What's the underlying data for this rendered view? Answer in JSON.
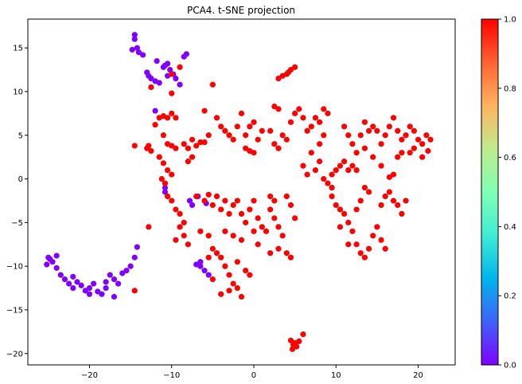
{
  "chart_data": {
    "type": "scatter",
    "title": "PCA4. t-SNE projection",
    "xlabel": "",
    "ylabel": "",
    "xlim": [
      -27.5,
      24.5
    ],
    "ylim": [
      -21.3,
      18.3
    ],
    "xticks": [
      -20,
      -10,
      0,
      10,
      20
    ],
    "xtick_labels": [
      "−20",
      "−10",
      "0",
      "10",
      "20"
    ],
    "yticks": [
      -20,
      -15,
      -10,
      -5,
      0,
      5,
      10,
      15
    ],
    "ytick_labels": [
      "−20",
      "−15",
      "−10",
      "−5",
      "0",
      "5",
      "10",
      "15"
    ],
    "grid": false,
    "colormap": "rainbow",
    "colorbar": {
      "range": [
        0.0,
        1.0
      ],
      "ticks": [
        0.0,
        0.2,
        0.4,
        0.6,
        0.8,
        1.0
      ],
      "tick_labels": [
        "0.0",
        "0.2",
        "0.4",
        "0.6",
        "0.8",
        "1.0"
      ]
    },
    "series": [
      {
        "value": 0.0,
        "color": "#8000ff",
        "points": [
          [
            -25.0,
            -9.0
          ],
          [
            -24.5,
            -9.5
          ],
          [
            -25.2,
            -9.8
          ],
          [
            -24.0,
            -10.2
          ],
          [
            -24.8,
            -9.2
          ],
          [
            -23.5,
            -11.0
          ],
          [
            -23.0,
            -11.5
          ],
          [
            -22.5,
            -12.0
          ],
          [
            -22.0,
            -11.2
          ],
          [
            -21.5,
            -11.8
          ],
          [
            -21.0,
            -12.2
          ],
          [
            -20.5,
            -12.8
          ],
          [
            -20.0,
            -12.5
          ],
          [
            -19.5,
            -12.0
          ],
          [
            -19.0,
            -12.9
          ],
          [
            -18.5,
            -13.2
          ],
          [
            -18.0,
            -12.5
          ],
          [
            -17.5,
            -11.0
          ],
          [
            -17.0,
            -11.5
          ],
          [
            -16.5,
            -12.0
          ],
          [
            -16.0,
            -10.8
          ],
          [
            -15.5,
            -10.5
          ],
          [
            -15.0,
            -10.0
          ],
          [
            -14.5,
            -9.0
          ],
          [
            -14.2,
            -7.8
          ],
          [
            -17.0,
            -13.5
          ],
          [
            -24.0,
            -8.8
          ],
          [
            -22.0,
            -12.5
          ],
          [
            -20.0,
            -13.2
          ],
          [
            -18.0,
            -11.8
          ],
          [
            -14.5,
            16.5
          ],
          [
            -14.5,
            16.0
          ],
          [
            -14.8,
            14.8
          ],
          [
            -14.0,
            14.5
          ],
          [
            -13.5,
            14.2
          ],
          [
            -13.0,
            12.2
          ],
          [
            -12.5,
            11.5
          ],
          [
            -12.8,
            11.8
          ],
          [
            -11.5,
            11.0
          ],
          [
            -11.0,
            12.8
          ],
          [
            -10.5,
            13.2
          ],
          [
            -10.2,
            12.5
          ],
          [
            -9.5,
            11.5
          ],
          [
            -9.0,
            10.8
          ],
          [
            -8.5,
            14.0
          ],
          [
            -8.2,
            14.3
          ],
          [
            -12.0,
            11.2
          ],
          [
            -10.5,
            11.8
          ],
          [
            -12.0,
            7.8
          ],
          [
            -10.8,
            -1.5
          ],
          [
            -10.8,
            -1.0
          ],
          [
            -7.0,
            -9.8
          ],
          [
            -6.5,
            -10.0
          ],
          [
            -6.0,
            -10.5
          ],
          [
            -6.5,
            -9.5
          ],
          [
            -5.5,
            -11.0
          ],
          [
            -5.8,
            -2.8
          ],
          [
            -6.8,
            -2.0
          ],
          [
            -7.8,
            -2.5
          ],
          [
            -7.5,
            -3.0
          ],
          [
            -14.2,
            15.0
          ],
          [
            -11.8,
            13.5
          ],
          [
            -9.8,
            12.0
          ],
          [
            -10.8,
            13.0
          ]
        ]
      },
      {
        "value": 1.0,
        "color": "#ff0000",
        "points": [
          [
            -14.5,
            3.8
          ],
          [
            -13.0,
            3.5
          ],
          [
            -12.5,
            3.2
          ],
          [
            -12.8,
            3.8
          ],
          [
            -12.0,
            6.2
          ],
          [
            -11.5,
            7.0
          ],
          [
            -11.0,
            7.2
          ],
          [
            -10.5,
            7.0
          ],
          [
            -10.0,
            7.5
          ],
          [
            -9.5,
            7.0
          ],
          [
            -11.0,
            5.0
          ],
          [
            -10.5,
            4.0
          ],
          [
            -10.0,
            3.8
          ],
          [
            -9.5,
            3.5
          ],
          [
            -11.5,
            2.5
          ],
          [
            -11.0,
            1.8
          ],
          [
            -10.5,
            1.0
          ],
          [
            -10.0,
            0.5
          ],
          [
            -11.2,
            0.0
          ],
          [
            -10.8,
            -0.5
          ],
          [
            -10.5,
            -2.0
          ],
          [
            -10.0,
            -2.5
          ],
          [
            -9.5,
            -3.5
          ],
          [
            -9.0,
            -4.0
          ],
          [
            -8.5,
            -5.0
          ],
          [
            -9.0,
            -5.5
          ],
          [
            -8.5,
            -6.5
          ],
          [
            -9.5,
            -7.0
          ],
          [
            -8.0,
            -7.5
          ],
          [
            -10.0,
            12.0
          ],
          [
            -9.0,
            12.8
          ],
          [
            -10.0,
            9.8
          ],
          [
            -12.5,
            10.5
          ],
          [
            -12.8,
            -5.5
          ],
          [
            -14.5,
            -12.8
          ],
          [
            -8.5,
            4.0
          ],
          [
            -8.0,
            3.5
          ],
          [
            -7.5,
            4.5
          ],
          [
            -7.0,
            3.8
          ],
          [
            -6.5,
            4.2
          ],
          [
            -7.5,
            2.5
          ],
          [
            -8.0,
            2.0
          ],
          [
            -6.0,
            7.8
          ],
          [
            -5.0,
            10.8
          ],
          [
            -4.5,
            7.0
          ],
          [
            -4.0,
            6.0
          ],
          [
            -3.5,
            5.5
          ],
          [
            -3.0,
            5.0
          ],
          [
            -2.5,
            4.5
          ],
          [
            -2.0,
            6.0
          ],
          [
            -1.5,
            7.5
          ],
          [
            -1.0,
            5.0
          ],
          [
            -0.5,
            6.0
          ],
          [
            0.0,
            6.5
          ],
          [
            0.5,
            4.5
          ],
          [
            -1.0,
            3.5
          ],
          [
            -0.5,
            3.2
          ],
          [
            0.0,
            3.0
          ],
          [
            -5.5,
            5.0
          ],
          [
            -6.0,
            4.2
          ],
          [
            -7.0,
            -2.0
          ],
          [
            -6.0,
            -2.5
          ],
          [
            -5.5,
            -1.8
          ],
          [
            -5.0,
            -3.0
          ],
          [
            -4.5,
            -2.0
          ],
          [
            -4.0,
            -3.5
          ],
          [
            -3.5,
            -2.5
          ],
          [
            -3.0,
            -4.0
          ],
          [
            -2.5,
            -3.0
          ],
          [
            -2.0,
            -2.5
          ],
          [
            -1.5,
            -4.0
          ],
          [
            -1.0,
            -5.0
          ],
          [
            -0.5,
            -3.5
          ],
          [
            0.0,
            -2.5
          ],
          [
            0.5,
            -4.5
          ],
          [
            1.0,
            -5.5
          ],
          [
            -6.5,
            -6.0
          ],
          [
            -5.5,
            -6.5
          ],
          [
            -5.0,
            -8.0
          ],
          [
            -4.5,
            -8.5
          ],
          [
            -4.0,
            -9.0
          ],
          [
            -3.5,
            -10.0
          ],
          [
            -3.0,
            -11.0
          ],
          [
            -2.5,
            -12.0
          ],
          [
            -2.0,
            -12.5
          ],
          [
            -1.5,
            -13.5
          ],
          [
            -3.0,
            -12.8
          ],
          [
            -4.0,
            -13.2
          ],
          [
            -5.0,
            -11.5
          ],
          [
            -5.5,
            -9.0
          ],
          [
            -2.0,
            -9.5
          ],
          [
            -1.0,
            -10.5
          ],
          [
            -0.5,
            -11.0
          ],
          [
            0.0,
            -6.0
          ],
          [
            0.5,
            -7.5
          ],
          [
            -1.5,
            -7.0
          ],
          [
            -2.5,
            -6.5
          ],
          [
            -3.5,
            -6.0
          ],
          [
            1.0,
            5.5
          ],
          [
            2.0,
            5.5
          ],
          [
            2.5,
            4.0
          ],
          [
            3.0,
            3.5
          ],
          [
            3.5,
            5.0
          ],
          [
            4.0,
            4.5
          ],
          [
            4.5,
            6.5
          ],
          [
            5.0,
            7.5
          ],
          [
            5.5,
            8.0
          ],
          [
            6.0,
            7.0
          ],
          [
            3.0,
            8.0
          ],
          [
            2.5,
            8.3
          ],
          [
            3.0,
            11.5
          ],
          [
            3.5,
            11.8
          ],
          [
            4.0,
            12.0
          ],
          [
            4.5,
            12.5
          ],
          [
            5.0,
            12.8
          ],
          [
            4.2,
            12.2
          ],
          [
            2.0,
            -2.0
          ],
          [
            2.5,
            -2.5
          ],
          [
            2.0,
            -3.5
          ],
          [
            2.5,
            -4.5
          ],
          [
            3.0,
            -5.5
          ],
          [
            3.5,
            -6.5
          ],
          [
            3.0,
            -8.0
          ],
          [
            4.0,
            -8.5
          ],
          [
            4.5,
            -9.0
          ],
          [
            4.0,
            -2.0
          ],
          [
            4.5,
            -3.0
          ],
          [
            5.0,
            -4.5
          ],
          [
            2.0,
            -8.5
          ],
          [
            1.5,
            -6.0
          ],
          [
            4.5,
            -18.5
          ],
          [
            4.8,
            -19.0
          ],
          [
            5.0,
            -18.8
          ],
          [
            5.2,
            -19.2
          ],
          [
            4.7,
            -19.5
          ],
          [
            5.5,
            -18.6
          ],
          [
            6.0,
            -17.8
          ],
          [
            6.5,
            5.5
          ],
          [
            7.0,
            6.0
          ],
          [
            7.5,
            7.0
          ],
          [
            8.0,
            6.5
          ],
          [
            8.5,
            8.0
          ],
          [
            9.0,
            7.5
          ],
          [
            8.5,
            5.0
          ],
          [
            8.0,
            4.0
          ],
          [
            7.0,
            3.0
          ],
          [
            6.0,
            1.5
          ],
          [
            6.5,
            0.5
          ],
          [
            7.5,
            1.0
          ],
          [
            8.0,
            2.0
          ],
          [
            8.5,
            0.0
          ],
          [
            9.0,
            -0.5
          ],
          [
            9.5,
            0.5
          ],
          [
            10.0,
            1.0
          ],
          [
            10.5,
            1.5
          ],
          [
            11.0,
            2.0
          ],
          [
            11.5,
            1.0
          ],
          [
            12.0,
            1.5
          ],
          [
            12.5,
            1.0
          ],
          [
            11.0,
            6.0
          ],
          [
            11.5,
            5.0
          ],
          [
            12.0,
            4.0
          ],
          [
            12.5,
            3.0
          ],
          [
            13.0,
            5.0
          ],
          [
            13.5,
            6.5
          ],
          [
            14.0,
            5.5
          ],
          [
            14.5,
            6.0
          ],
          [
            15.0,
            5.5
          ],
          [
            15.5,
            4.0
          ],
          [
            16.0,
            5.0
          ],
          [
            16.5,
            6.0
          ],
          [
            17.0,
            7.0
          ],
          [
            17.5,
            5.5
          ],
          [
            18.0,
            4.5
          ],
          [
            18.5,
            5.0
          ],
          [
            19.0,
            6.0
          ],
          [
            19.5,
            5.5
          ],
          [
            20.0,
            4.5
          ],
          [
            20.5,
            4.0
          ],
          [
            21.0,
            5.0
          ],
          [
            21.5,
            4.5
          ],
          [
            21.2,
            3.2
          ],
          [
            20.5,
            2.5
          ],
          [
            19.5,
            3.5
          ],
          [
            19.0,
            3.0
          ],
          [
            18.0,
            3.0
          ],
          [
            17.5,
            2.5
          ],
          [
            17.0,
            0.5
          ],
          [
            16.5,
            0.2
          ],
          [
            15.5,
            1.5
          ],
          [
            14.5,
            2.5
          ],
          [
            13.5,
            3.5
          ],
          [
            9.5,
            -2.0
          ],
          [
            10.0,
            -3.0
          ],
          [
            10.5,
            -3.5
          ],
          [
            11.0,
            -4.0
          ],
          [
            11.5,
            -5.0
          ],
          [
            12.0,
            -6.0
          ],
          [
            12.5,
            -7.5
          ],
          [
            13.0,
            -8.5
          ],
          [
            13.5,
            -9.0
          ],
          [
            14.0,
            -8.0
          ],
          [
            14.5,
            -6.5
          ],
          [
            15.0,
            -5.5
          ],
          [
            15.5,
            -3.0
          ],
          [
            16.0,
            -2.0
          ],
          [
            16.5,
            -1.5
          ],
          [
            17.0,
            -2.5
          ],
          [
            17.5,
            -3.0
          ],
          [
            18.0,
            -4.0
          ],
          [
            18.5,
            -2.5
          ],
          [
            14.0,
            -1.5
          ],
          [
            13.5,
            -1.0
          ],
          [
            13.0,
            -2.5
          ],
          [
            12.5,
            -3.5
          ],
          [
            11.5,
            -7.5
          ],
          [
            10.5,
            -5.5
          ],
          [
            9.5,
            -1.0
          ],
          [
            16.0,
            -8.0
          ],
          [
            15.5,
            -7.0
          ]
        ]
      }
    ]
  }
}
